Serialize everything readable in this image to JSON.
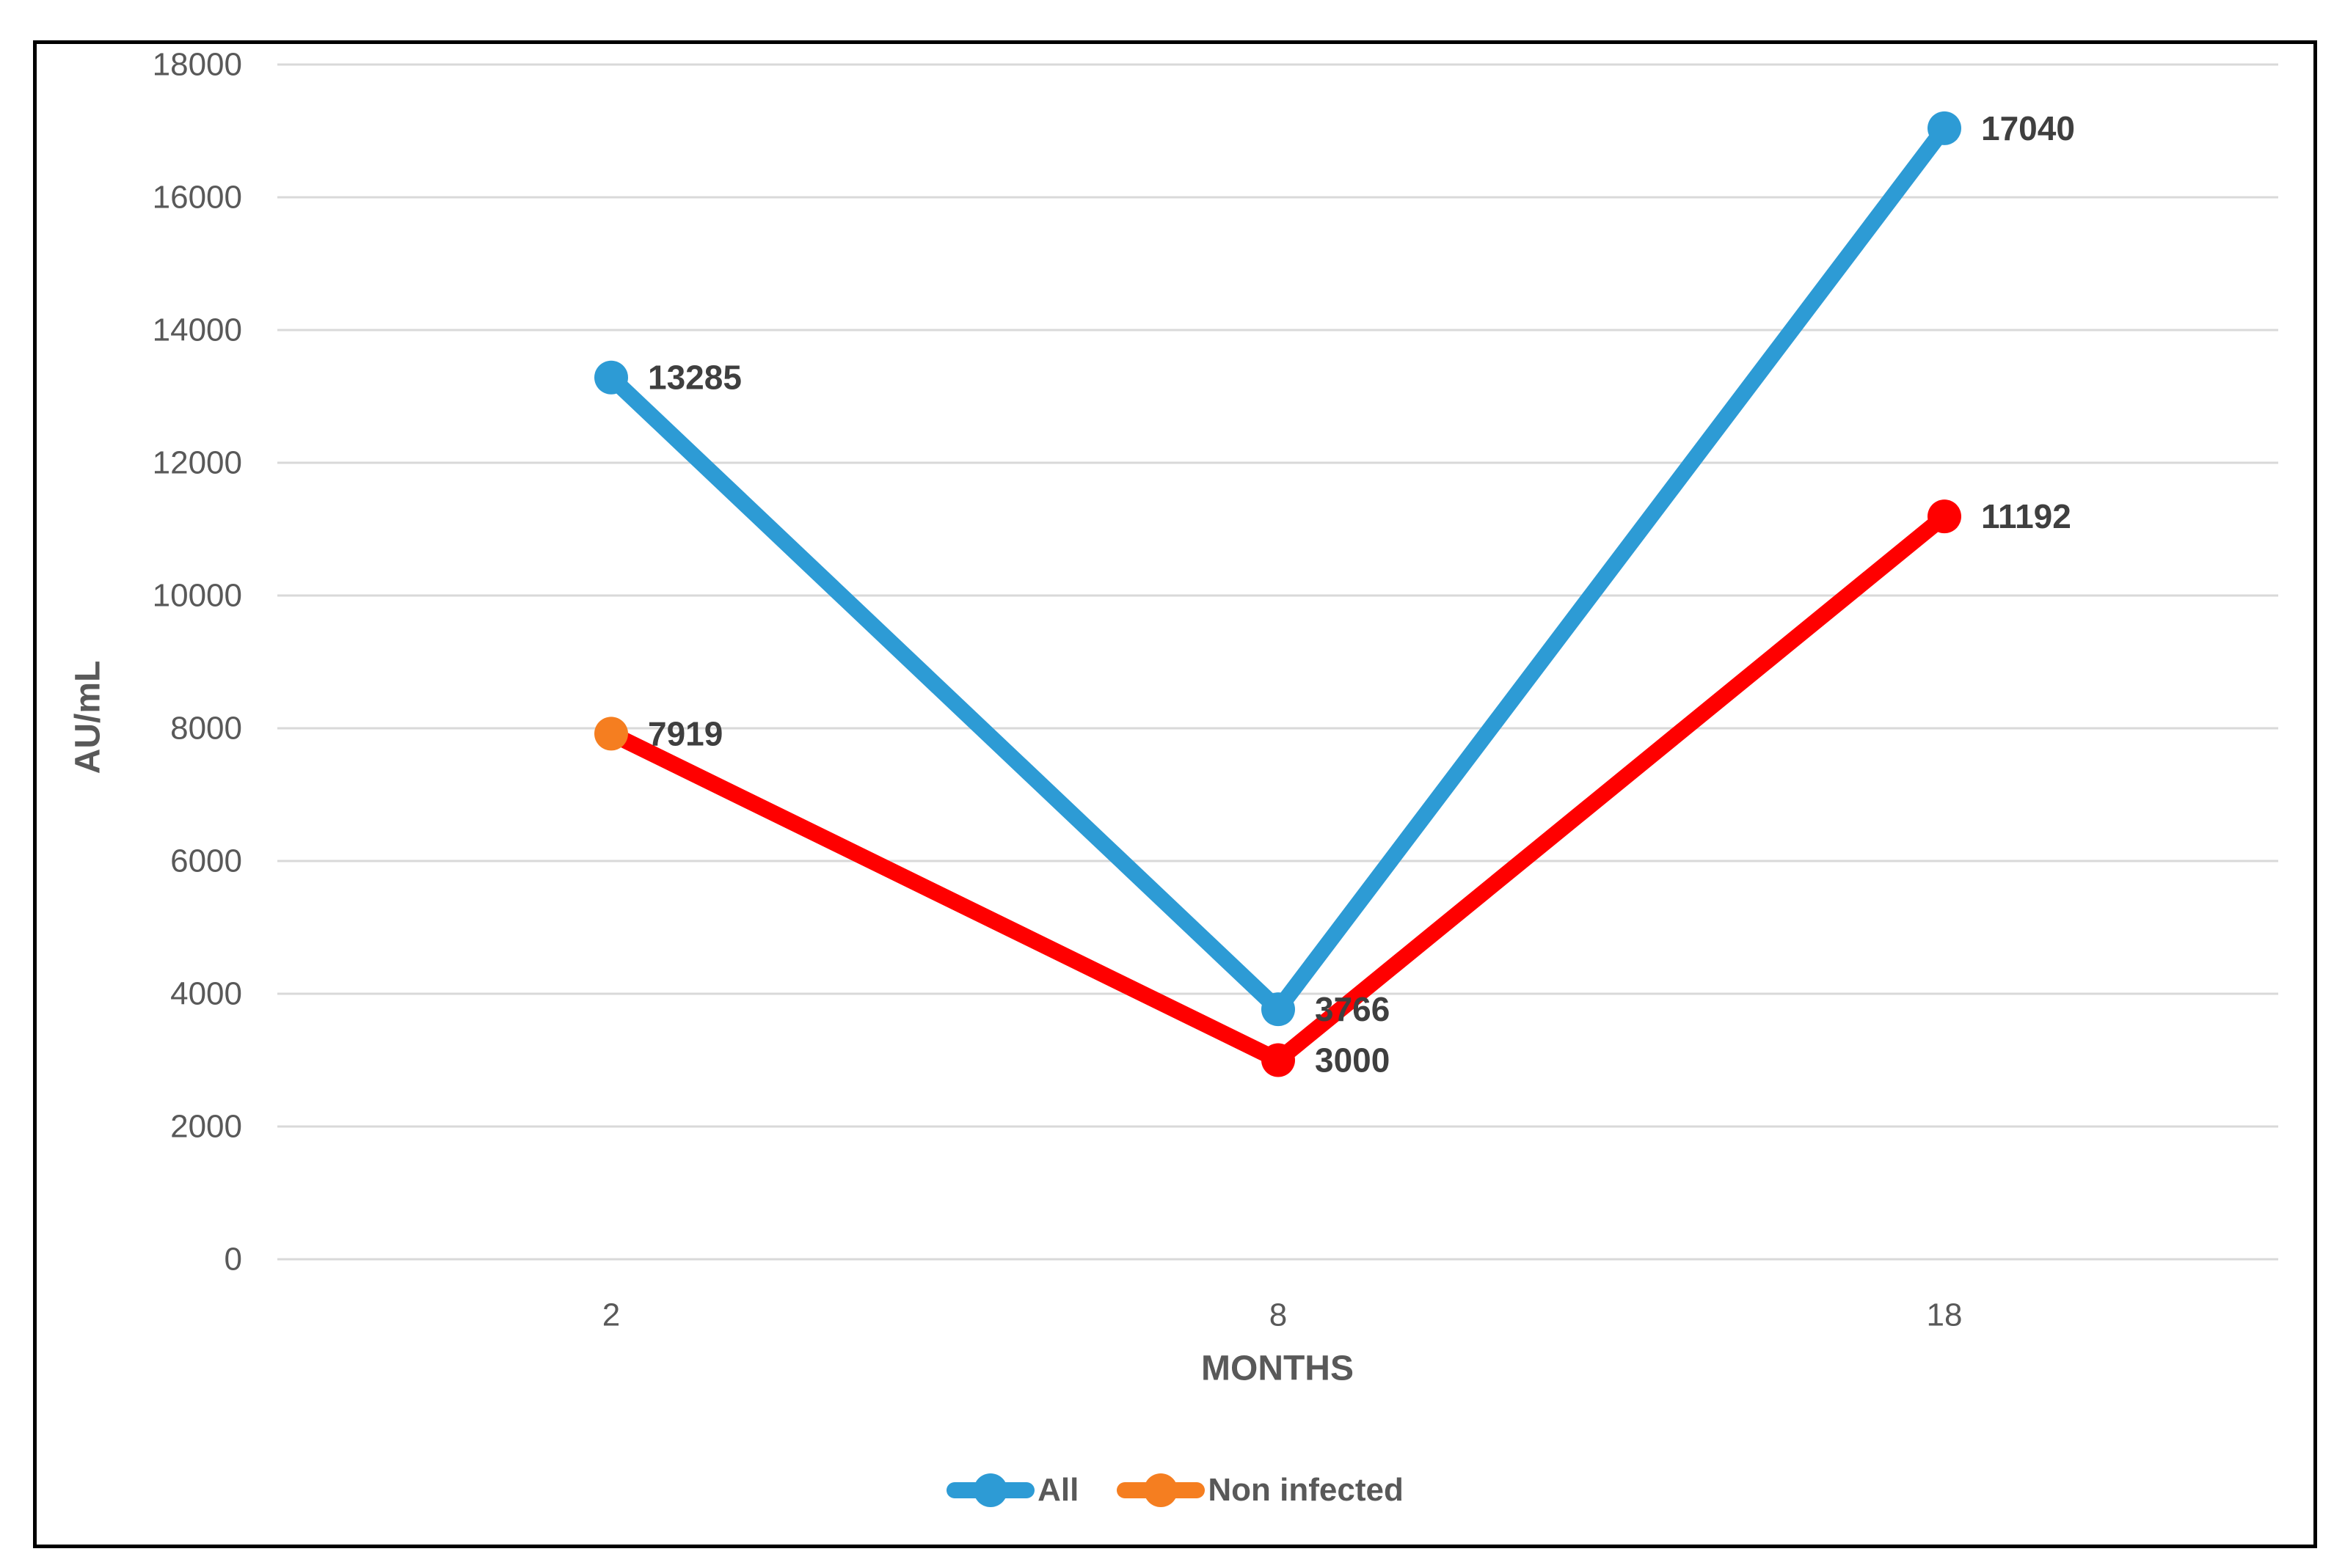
{
  "chart_data": {
    "type": "line",
    "title": "",
    "categories": [
      "2",
      "8",
      "18"
    ],
    "xlabel": "MONTHS",
    "ylabel": "AU/mL",
    "ylim": [
      0,
      18000
    ],
    "ytick_interval": 2000,
    "yticks": [
      0,
      2000,
      4000,
      6000,
      8000,
      10000,
      12000,
      14000,
      16000,
      18000
    ],
    "ytick_labels": [
      "0",
      "2000",
      "4000",
      "6000",
      "8000",
      "10000",
      "12000",
      "14000",
      "16000",
      "18000"
    ],
    "grid": true,
    "legend_position": "bottom-center",
    "series": [
      {
        "name": "All",
        "values": [
          13285,
          3766,
          17040
        ],
        "data_labels": [
          "13285",
          "3766",
          "17040"
        ],
        "line_color": "#2D9BD5",
        "marker_colors": [
          "#2D9BD5",
          "#2D9BD5",
          "#2D9BD5"
        ],
        "legend_color": "#2D9BD5"
      },
      {
        "name": "Non infected",
        "values": [
          7919,
          3000,
          11192
        ],
        "data_labels": [
          "7919",
          "3000",
          "11192"
        ],
        "line_color": "#FF0000",
        "marker_colors": [
          "#F57E20",
          "#FF0000",
          "#FF0000"
        ],
        "legend_color": "#F57E20"
      }
    ]
  },
  "colors": {
    "grid": "#D9D9D9",
    "axis_text": "#595959",
    "data_label_text": "#3F3F3F",
    "frame_border": "#000000",
    "background": "#FFFFFF"
  }
}
